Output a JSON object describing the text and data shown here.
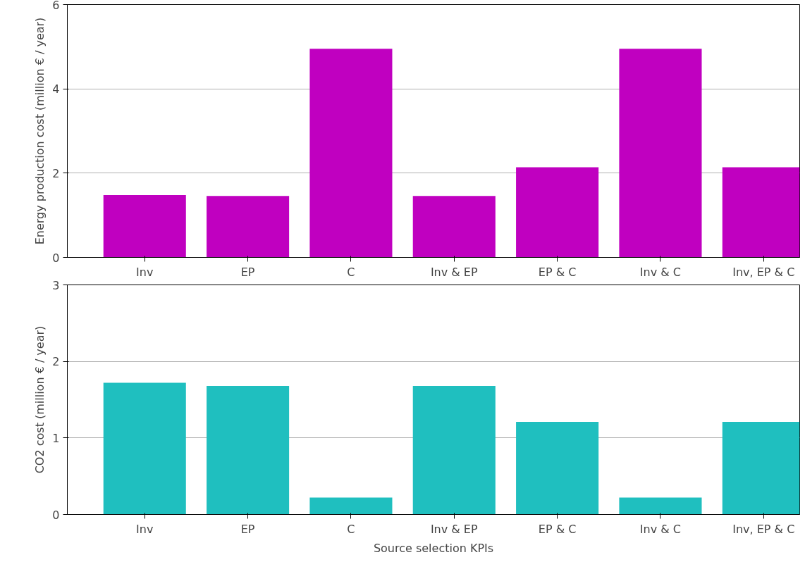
{
  "chart_data": [
    {
      "type": "bar",
      "categories": [
        "Inv",
        "EP",
        "C",
        "Inv & EP",
        "EP & C",
        "Inv & C",
        "Inv, EP & C"
      ],
      "ylabel": "Energy production cost (million € / year)",
      "series": [
        {
          "color": "#c000c0",
          "values": [
            1.48,
            1.46,
            4.95,
            1.46,
            2.14,
            4.95,
            2.14
          ]
        }
      ],
      "ylim": [
        0,
        6
      ],
      "yticks": [
        0,
        2,
        4,
        6
      ],
      "grid": "y"
    },
    {
      "type": "bar",
      "categories": [
        "Inv",
        "EP",
        "C",
        "Inv & EP",
        "EP & C",
        "Inv & C",
        "Inv, EP & C"
      ],
      "ylabel": "CO2 cost (million € / year)",
      "xlabel": "Source selection KPIs",
      "series": [
        {
          "color": "#1fbfbf",
          "values": [
            1.72,
            1.68,
            0.22,
            1.68,
            1.21,
            0.22,
            1.21
          ]
        }
      ],
      "ylim": [
        0,
        3
      ],
      "yticks": [
        0,
        1,
        2,
        3
      ],
      "grid": "y"
    }
  ]
}
